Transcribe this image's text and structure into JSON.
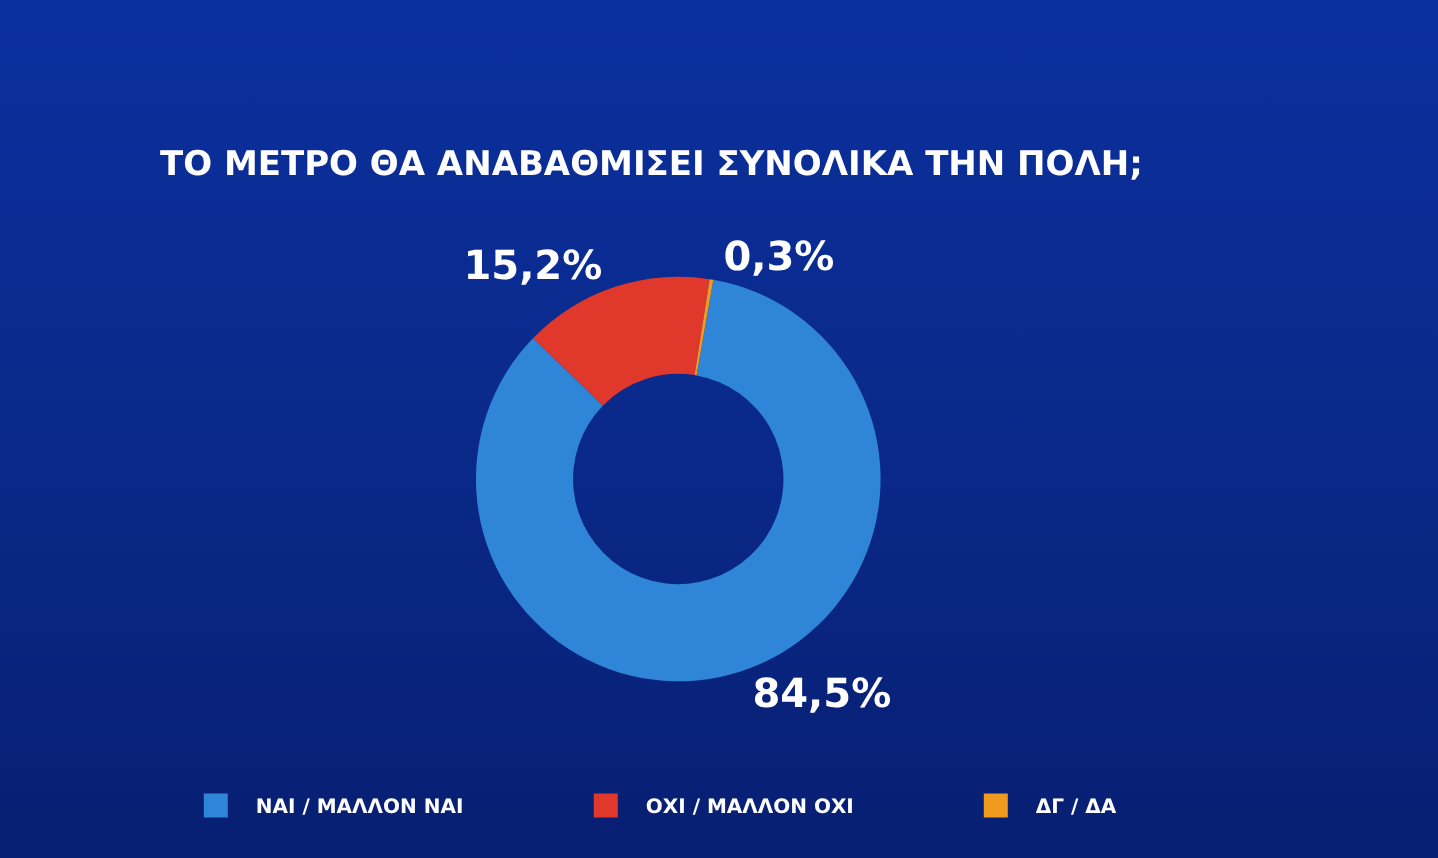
{
  "chart_data": {
    "type": "donut",
    "title": "ΤΟ ΜΕΤΡΟ ΘΑ ΑΝΑΒΑΘΜΙΣΕΙ ΣΥΝΟΛΙΚΑ ΤΗΝ ΠΟΛΗ;",
    "categories": [
      "ΝΑΙ / ΜΑΛΛΟΝ ΝΑΙ",
      "ΟΧΙ / ΜΑΛΛΟΝ ΟΧΙ",
      "ΔΓ / ΔΑ"
    ],
    "values": [
      84.5,
      15.2,
      0.3
    ],
    "value_labels": [
      "84,5%",
      "15,2%",
      "0,3%"
    ],
    "colors": [
      "#2f86d8",
      "#e0392b",
      "#f09a1e"
    ],
    "legend": "bottom"
  }
}
